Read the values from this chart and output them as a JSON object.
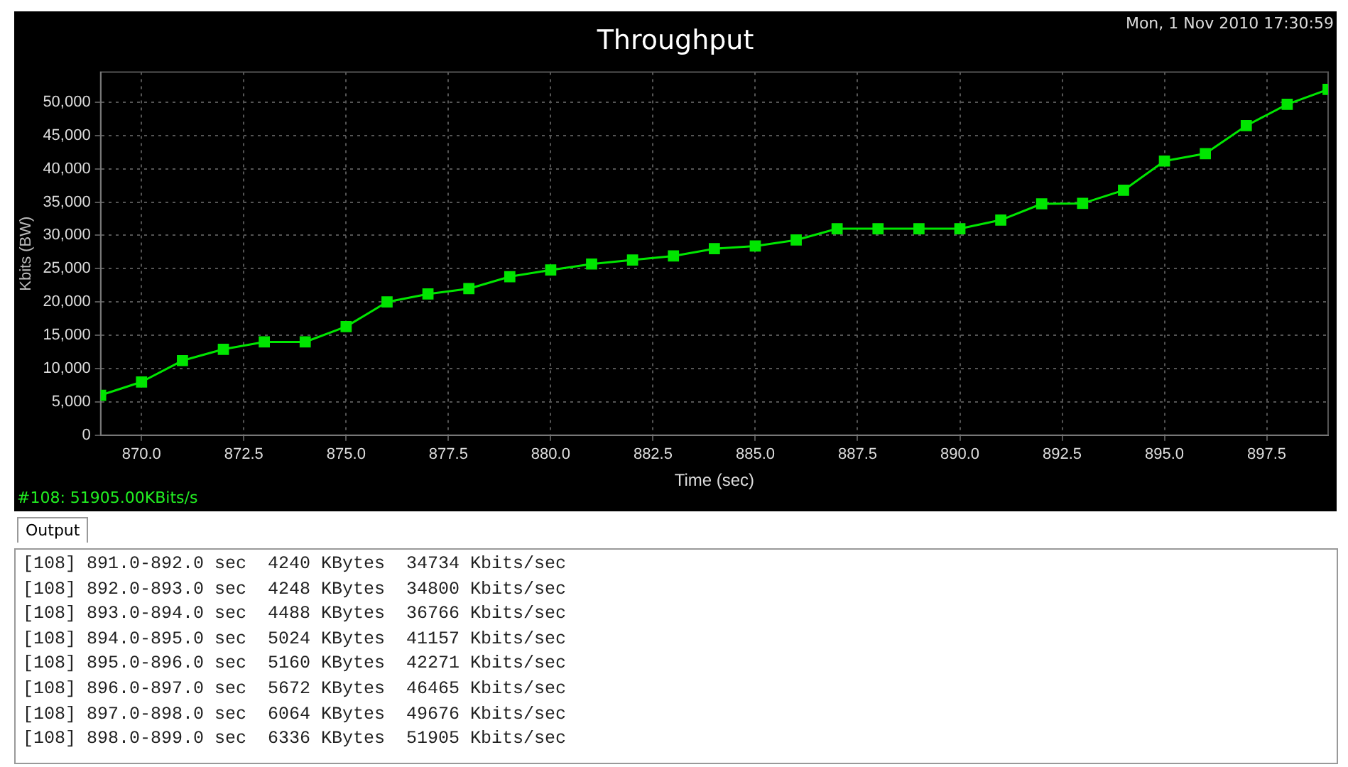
{
  "chart_data": {
    "type": "line",
    "title": "Throughput",
    "xlabel": "Time (sec)",
    "ylabel": "Kbits (BW)",
    "x": [
      869,
      870,
      871,
      872,
      873,
      874,
      875,
      876,
      877,
      878,
      879,
      880,
      881,
      882,
      883,
      884,
      885,
      886,
      887,
      888,
      889,
      890,
      891,
      892,
      893,
      894,
      895,
      896,
      897,
      898,
      899
    ],
    "series": [
      {
        "color": "#00e600",
        "values": [
          6000,
          8000,
          11200,
          12900,
          14000,
          14000,
          16300,
          20000,
          21200,
          22000,
          23800,
          24800,
          25700,
          26300,
          26900,
          28000,
          28400,
          29300,
          31000,
          31000,
          31000,
          31000,
          32300,
          34734,
          34800,
          36766,
          41157,
          42271,
          46465,
          49676,
          51905
        ]
      }
    ],
    "xlim": [
      869,
      899
    ],
    "xticks": [
      {
        "value": 870,
        "label": "870.0"
      },
      {
        "value": 872.5,
        "label": "872.5"
      },
      {
        "value": 875,
        "label": "875.0"
      },
      {
        "value": 877.5,
        "label": "877.5"
      },
      {
        "value": 880,
        "label": "880.0"
      },
      {
        "value": 882.5,
        "label": "882.5"
      },
      {
        "value": 885,
        "label": "885.0"
      },
      {
        "value": 887.5,
        "label": "887.5"
      },
      {
        "value": 890,
        "label": "890.0"
      },
      {
        "value": 892.5,
        "label": "892.5"
      },
      {
        "value": 895,
        "label": "895.0"
      },
      {
        "value": 897.5,
        "label": "897.5"
      }
    ],
    "ylim": [
      0,
      54500
    ],
    "yticks": [
      0,
      {
        "value": 5000,
        "label": "5,000"
      },
      {
        "value": 10000,
        "label": "10,000"
      },
      {
        "value": 15000,
        "label": "15,000"
      },
      {
        "value": 20000,
        "label": "20,000"
      },
      {
        "value": 25000,
        "label": "25,000"
      },
      {
        "value": 30000,
        "label": "30,000"
      },
      {
        "value": 35000,
        "label": "35,000"
      },
      {
        "value": 40000,
        "label": "40,000"
      },
      {
        "value": 45000,
        "label": "45,000"
      },
      {
        "value": 50000,
        "label": "50,000"
      }
    ],
    "grid": true,
    "legend": false,
    "marker": "square",
    "line_style": "solid",
    "annotations": [
      "Mon, 1 Nov 2010 17:30:59",
      "#108: 51905.00KBits/s",
      "Output",
      "[108] 891.0-892.0 sec  4240 KBytes  34734 Kbits/sec",
      "[108] 892.0-893.0 sec  4248 KBytes  34800 Kbits/sec",
      "[108] 893.0-894.0 sec  4488 KBytes  36766 Kbits/sec",
      "[108] 894.0-895.0 sec  5024 KBytes  41157 Kbits/sec",
      "[108] 895.0-896.0 sec  5160 KBytes  42271 Kbits/sec",
      "[108] 896.0-897.0 sec  5672 KBytes  46465 Kbits/sec",
      "[108] 897.0-898.0 sec  6064 KBytes  49676 Kbits/sec",
      "[108] 898.0-899.0 sec  6336 KBytes  51905 Kbits/sec"
    ]
  }
}
